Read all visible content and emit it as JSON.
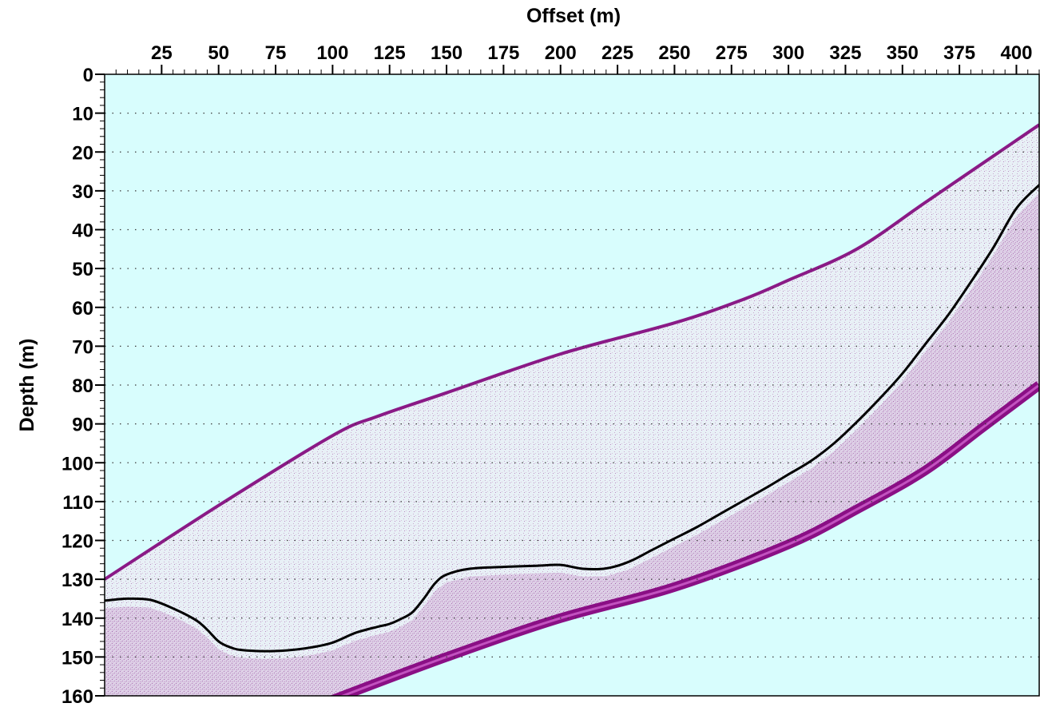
{
  "chart_data": {
    "type": "line",
    "xlabel": "Offset (m)",
    "ylabel": "Depth (m)",
    "xlim": [
      0,
      410
    ],
    "ylim": [
      160,
      0
    ],
    "x_ticks": [
      25,
      50,
      75,
      100,
      125,
      150,
      175,
      200,
      225,
      250,
      275,
      300,
      325,
      350,
      375,
      400
    ],
    "y_ticks": [
      0,
      10,
      20,
      30,
      40,
      50,
      60,
      70,
      80,
      90,
      100,
      110,
      120,
      130,
      140,
      150,
      160
    ],
    "grid": true,
    "colors": {
      "background": "#d8fdfd",
      "data_region": "#e6f2f6",
      "reflection": "#8a1a86",
      "trace": "#000000"
    },
    "data_region_top": {
      "x": [
        0,
        50,
        100,
        120,
        150,
        200,
        250,
        280,
        300,
        330,
        360,
        385,
        410
      ],
      "y": [
        130,
        111,
        93,
        88,
        82,
        72,
        64,
        58,
        53,
        45,
        33,
        23,
        13
      ]
    },
    "data_region_bottom": {
      "x": [
        100,
        150,
        200,
        250,
        300,
        330,
        360,
        385,
        410
      ],
      "y": [
        161,
        150,
        140,
        132,
        121,
        112,
        102,
        91,
        80
      ]
    },
    "series": [
      {
        "x": [
          0,
          10,
          20,
          30,
          40,
          45,
          50,
          55,
          60,
          70,
          80,
          90,
          100,
          110,
          120,
          125,
          130,
          135,
          140,
          145,
          150,
          160,
          175,
          190,
          200,
          210,
          220,
          230,
          240,
          250,
          260,
          275,
          290,
          300,
          310,
          320,
          330,
          340,
          350,
          360,
          370,
          380,
          390,
          400,
          410
        ],
        "y": [
          135.5,
          135,
          135.3,
          137.5,
          140.5,
          143,
          146,
          147.5,
          148.2,
          148.5,
          148.3,
          147.6,
          146.3,
          143.8,
          142.2,
          141.5,
          140.2,
          138.5,
          135,
          131,
          128.8,
          127.3,
          126.8,
          126.5,
          126.3,
          127.3,
          127.2,
          125.5,
          122.5,
          119.5,
          116.5,
          111.5,
          106.5,
          103,
          99.5,
          95,
          89.5,
          83.5,
          77,
          69.5,
          62,
          53.5,
          44.5,
          34.5,
          28.5
        ]
      }
    ]
  }
}
